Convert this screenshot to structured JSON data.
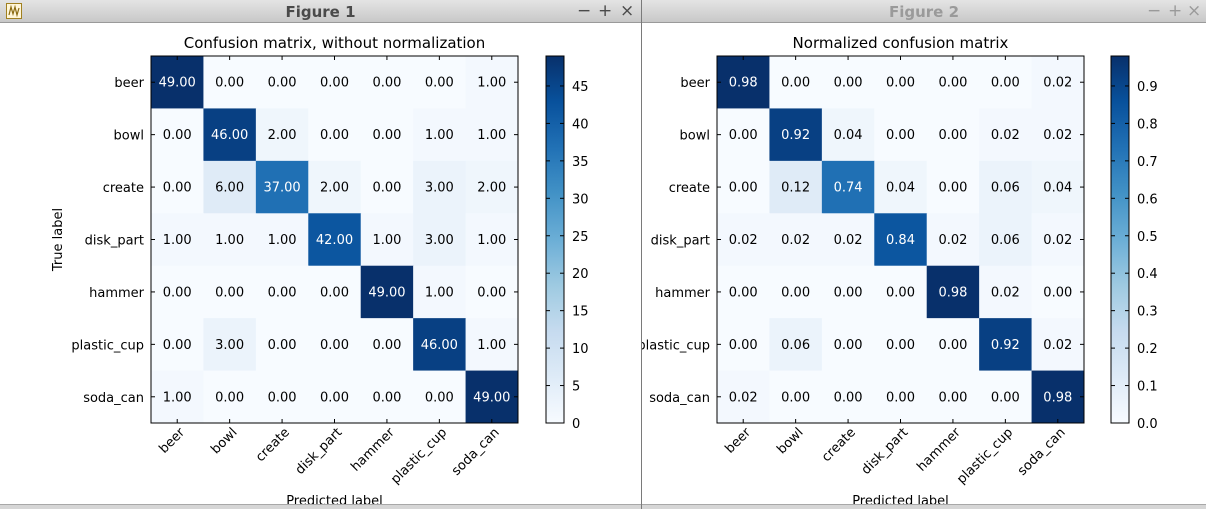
{
  "windows": [
    {
      "title": "Figure 1",
      "min_label": "−",
      "max_label": "+",
      "close_label": "×",
      "active": true
    },
    {
      "title": "Figure 2",
      "min_label": "−",
      "max_label": "+",
      "close_label": "×",
      "active": false
    }
  ],
  "icons": {
    "app": "matplotlib-figure-icon"
  },
  "chart_data": [
    {
      "type": "heatmap",
      "title": "Confusion matrix, without normalization",
      "xlabel": "Predicted label",
      "ylabel": "True label",
      "x_categories": [
        "beer",
        "bowl",
        "create",
        "disk_part",
        "hammer",
        "plastic_cup",
        "soda_can"
      ],
      "y_categories": [
        "beer",
        "bowl",
        "create",
        "disk_part",
        "hammer",
        "plastic_cup",
        "soda_can"
      ],
      "values": [
        [
          49,
          0,
          0,
          0,
          0,
          0,
          1
        ],
        [
          0,
          46,
          2,
          0,
          0,
          1,
          1
        ],
        [
          0,
          6,
          37,
          2,
          0,
          3,
          2
        ],
        [
          1,
          1,
          1,
          42,
          1,
          3,
          1
        ],
        [
          0,
          0,
          0,
          0,
          49,
          1,
          0
        ],
        [
          0,
          3,
          0,
          0,
          0,
          46,
          1
        ],
        [
          1,
          0,
          0,
          0,
          0,
          0,
          49
        ]
      ],
      "value_labels": [
        [
          "49.00",
          "0.00",
          "0.00",
          "0.00",
          "0.00",
          "0.00",
          "1.00"
        ],
        [
          "0.00",
          "46.00",
          "2.00",
          "0.00",
          "0.00",
          "1.00",
          "1.00"
        ],
        [
          "0.00",
          "6.00",
          "37.00",
          "2.00",
          "0.00",
          "3.00",
          "2.00"
        ],
        [
          "1.00",
          "1.00",
          "1.00",
          "42.00",
          "1.00",
          "3.00",
          "1.00"
        ],
        [
          "0.00",
          "0.00",
          "0.00",
          "0.00",
          "49.00",
          "1.00",
          "0.00"
        ],
        [
          "0.00",
          "3.00",
          "0.00",
          "0.00",
          "0.00",
          "46.00",
          "1.00"
        ],
        [
          "1.00",
          "0.00",
          "0.00",
          "0.00",
          "0.00",
          "0.00",
          "49.00"
        ]
      ],
      "colorbar": {
        "range": [
          0,
          49
        ],
        "ticks": [
          0,
          5,
          10,
          15,
          20,
          25,
          30,
          35,
          40,
          45
        ],
        "tick_labels": [
          "0",
          "5",
          "10",
          "15",
          "20",
          "25",
          "30",
          "35",
          "40",
          "45"
        ]
      },
      "colormap": "Blues",
      "grid": false
    },
    {
      "type": "heatmap",
      "title": "Normalized confusion matrix",
      "xlabel": "Predicted label",
      "ylabel": "",
      "x_categories": [
        "beer",
        "bowl",
        "create",
        "disk_part",
        "hammer",
        "plastic_cup",
        "soda_can"
      ],
      "y_categories": [
        "beer",
        "bowl",
        "create",
        "disk_part",
        "hammer",
        "plastic_cup",
        "soda_can"
      ],
      "values": [
        [
          0.98,
          0.0,
          0.0,
          0.0,
          0.0,
          0.0,
          0.02
        ],
        [
          0.0,
          0.92,
          0.04,
          0.0,
          0.0,
          0.02,
          0.02
        ],
        [
          0.0,
          0.12,
          0.74,
          0.04,
          0.0,
          0.06,
          0.04
        ],
        [
          0.02,
          0.02,
          0.02,
          0.84,
          0.02,
          0.06,
          0.02
        ],
        [
          0.0,
          0.0,
          0.0,
          0.0,
          0.98,
          0.02,
          0.0
        ],
        [
          0.0,
          0.06,
          0.0,
          0.0,
          0.0,
          0.92,
          0.02
        ],
        [
          0.02,
          0.0,
          0.0,
          0.0,
          0.0,
          0.0,
          0.98
        ]
      ],
      "value_labels": [
        [
          "0.98",
          "0.00",
          "0.00",
          "0.00",
          "0.00",
          "0.00",
          "0.02"
        ],
        [
          "0.00",
          "0.92",
          "0.04",
          "0.00",
          "0.00",
          "0.02",
          "0.02"
        ],
        [
          "0.00",
          "0.12",
          "0.74",
          "0.04",
          "0.00",
          "0.06",
          "0.04"
        ],
        [
          "0.02",
          "0.02",
          "0.02",
          "0.84",
          "0.02",
          "0.06",
          "0.02"
        ],
        [
          "0.00",
          "0.00",
          "0.00",
          "0.00",
          "0.98",
          "0.02",
          "0.00"
        ],
        [
          "0.00",
          "0.06",
          "0.00",
          "0.00",
          "0.00",
          "0.92",
          "0.02"
        ],
        [
          "0.02",
          "0.00",
          "0.00",
          "0.00",
          "0.00",
          "0.00",
          "0.98"
        ]
      ],
      "colorbar": {
        "range": [
          0,
          0.98
        ],
        "ticks": [
          0.0,
          0.1,
          0.2,
          0.3,
          0.4,
          0.5,
          0.6,
          0.7,
          0.8,
          0.9
        ],
        "tick_labels": [
          "0.0",
          "0.1",
          "0.2",
          "0.3",
          "0.4",
          "0.5",
          "0.6",
          "0.7",
          "0.8",
          "0.9"
        ]
      },
      "colormap": "Blues",
      "grid": false
    }
  ]
}
